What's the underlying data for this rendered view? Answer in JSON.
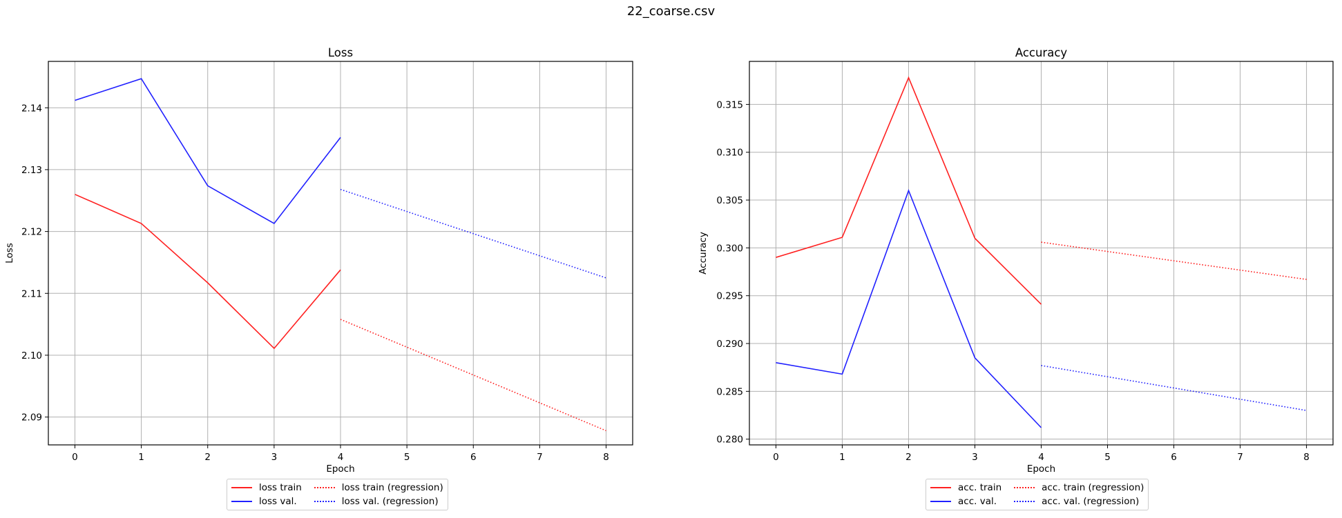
{
  "figure": {
    "suptitle": "22_coarse.csv"
  },
  "colors": {
    "train": "#ff2020",
    "val": "#2020ff",
    "grid": "#b0b0b0",
    "axes": "#000000"
  },
  "chart_data": [
    {
      "type": "line",
      "title": "Loss",
      "xlabel": "Epoch",
      "ylabel": "Loss",
      "xlim": [
        -0.4,
        8.4
      ],
      "ylim": [
        2.0855,
        2.1475
      ],
      "xticks": [
        0,
        1,
        2,
        3,
        4,
        5,
        6,
        7,
        8
      ],
      "yticks": [
        2.09,
        2.1,
        2.11,
        2.12,
        2.13,
        2.14
      ],
      "ytick_labels": [
        "2.09",
        "2.10",
        "2.11",
        "2.12",
        "2.13",
        "2.14"
      ],
      "grid": true,
      "legend_position": "below",
      "series": [
        {
          "name": "loss train",
          "color": "#ff2020",
          "style": "solid",
          "x": [
            0,
            1,
            2,
            3,
            4
          ],
          "y": [
            2.126,
            2.1213,
            2.1117,
            2.1011,
            2.1138
          ]
        },
        {
          "name": "loss val.",
          "color": "#2020ff",
          "style": "solid",
          "x": [
            0,
            1,
            2,
            3,
            4
          ],
          "y": [
            2.1412,
            2.1447,
            2.1274,
            2.1213,
            2.1352
          ]
        },
        {
          "name": "loss train (regression)",
          "color": "#ff2020",
          "style": "dotted",
          "x": [
            4,
            8
          ],
          "y": [
            2.1058,
            2.0878
          ]
        },
        {
          "name": "loss val. (regression)",
          "color": "#2020ff",
          "style": "dotted",
          "x": [
            4,
            8
          ],
          "y": [
            2.1268,
            2.1125
          ]
        }
      ]
    },
    {
      "type": "line",
      "title": "Accuracy",
      "xlabel": "Epoch",
      "ylabel": "Accuracy",
      "xlim": [
        -0.4,
        8.4
      ],
      "ylim": [
        0.2794,
        0.3195
      ],
      "xticks": [
        0,
        1,
        2,
        3,
        4,
        5,
        6,
        7,
        8
      ],
      "yticks": [
        0.28,
        0.285,
        0.29,
        0.295,
        0.3,
        0.305,
        0.31,
        0.315
      ],
      "ytick_labels": [
        "0.280",
        "0.285",
        "0.290",
        "0.295",
        "0.300",
        "0.305",
        "0.310",
        "0.315"
      ],
      "grid": true,
      "legend_position": "below",
      "series": [
        {
          "name": "acc. train",
          "color": "#ff2020",
          "style": "solid",
          "x": [
            0,
            1,
            2,
            3,
            4
          ],
          "y": [
            0.299,
            0.3011,
            0.3178,
            0.301,
            0.2941
          ]
        },
        {
          "name": "acc. val.",
          "color": "#2020ff",
          "style": "solid",
          "x": [
            0,
            1,
            2,
            3,
            4
          ],
          "y": [
            0.288,
            0.2868,
            0.306,
            0.2885,
            0.2812
          ]
        },
        {
          "name": "acc. train (regression)",
          "color": "#ff2020",
          "style": "dotted",
          "x": [
            4,
            8
          ],
          "y": [
            0.3006,
            0.2967
          ]
        },
        {
          "name": "acc. val. (regression)",
          "color": "#2020ff",
          "style": "dotted",
          "x": [
            4,
            8
          ],
          "y": [
            0.2877,
            0.283
          ]
        }
      ]
    }
  ]
}
